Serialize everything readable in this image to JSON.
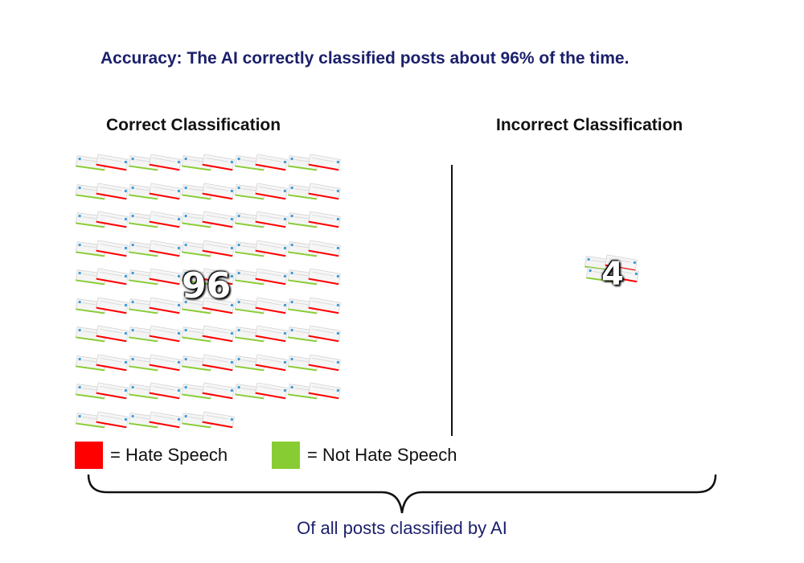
{
  "headline": "Accuracy: The AI correctly classified posts about 96% of the time.",
  "correct": {
    "title": "Correct Classification",
    "count": "96",
    "icon_count": 96
  },
  "incorrect": {
    "title": "Incorrect Classification",
    "count": "4",
    "icon_count": 4
  },
  "legend": {
    "hate_label": "= Hate Speech",
    "hate_color": "#ff0000",
    "not_hate_label": "= Not Hate Speech",
    "not_hate_color": "#88cc33"
  },
  "icon_name": "post-card-icon",
  "footer": "Of all posts classified by AI"
}
